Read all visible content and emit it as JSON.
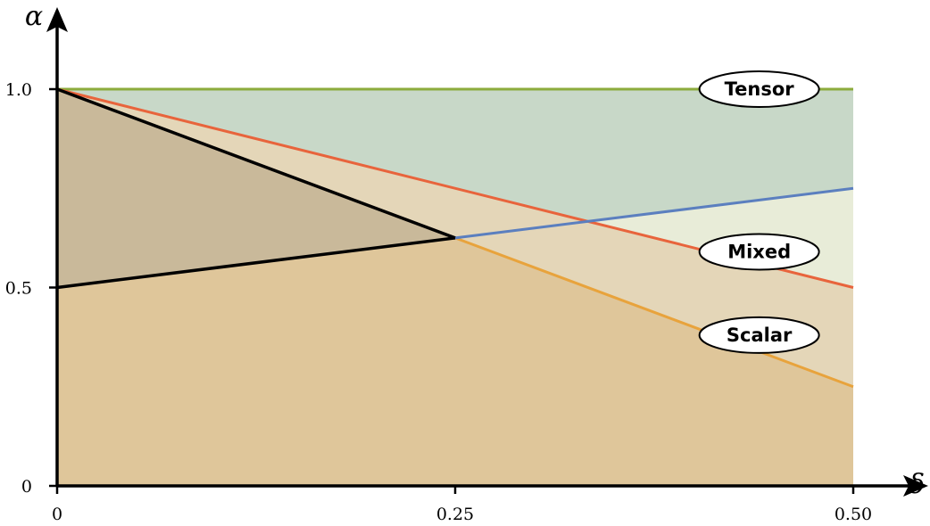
{
  "chart_data": {
    "type": "area",
    "title": "",
    "xlabel": "δ",
    "ylabel": "α",
    "xlim": [
      0,
      0.5
    ],
    "ylim": [
      0,
      1.0
    ],
    "x_ticks": [
      "0",
      "0.25",
      "0.50"
    ],
    "y_ticks": [
      "0",
      "0.5",
      "1.0"
    ],
    "series": [
      {
        "name": "Tensor",
        "color": "#8cab3c",
        "x": [
          0,
          0.5
        ],
        "y": [
          1.0,
          1.0
        ]
      },
      {
        "name": "Mixed",
        "color": "#e8643c",
        "x": [
          0,
          0.5
        ],
        "y": [
          1.0,
          0.5
        ]
      },
      {
        "name": "Scalar",
        "color": "#e8a33c",
        "x": [
          0,
          0.25,
          0.5
        ],
        "y": [
          1.0,
          0.625,
          0.25
        ]
      },
      {
        "color": "#5b7fbf",
        "x": [
          0.25,
          0.5
        ],
        "y": [
          0.625,
          0.75
        ]
      },
      {
        "color": "#000000",
        "x": [
          0,
          0.25
        ],
        "y": [
          1.0,
          0.625
        ]
      },
      {
        "color": "#000000",
        "x": [
          0,
          0.25
        ],
        "y": [
          0.5,
          0.625
        ]
      }
    ],
    "regions": [
      {
        "color": "#c8d8c8",
        "polygon": [
          [
            0,
            1.0
          ],
          [
            0.5,
            1.0
          ],
          [
            0.5,
            0.5
          ],
          [
            0,
            1.0
          ]
        ]
      },
      {
        "color": "#e8ecd8",
        "polygon": [
          [
            0.25,
            0.625
          ],
          [
            0.5,
            0.75
          ],
          [
            0.5,
            0.5
          ],
          [
            0.333,
            0.667
          ]
        ]
      },
      {
        "color": "#e4d6b8",
        "polygon": [
          [
            0,
            1.0
          ],
          [
            0.5,
            0.5
          ],
          [
            0.5,
            0.25
          ],
          [
            0.25,
            0.625
          ]
        ]
      },
      {
        "color": "#dfc69a",
        "polygon": [
          [
            0,
            0
          ],
          [
            0,
            0.5
          ],
          [
            0.25,
            0.625
          ],
          [
            0.5,
            0.25
          ],
          [
            0.5,
            0
          ]
        ]
      },
      {
        "color": "#c9b99a",
        "polygon": [
          [
            0,
            1.0
          ],
          [
            0.25,
            0.625
          ],
          [
            0,
            0.5
          ]
        ]
      }
    ],
    "annotations": [
      {
        "text": "Tensor",
        "x": 0.409,
        "y": 1.0
      },
      {
        "text": "Mixed",
        "x": 0.409,
        "y": 0.59
      },
      {
        "text": "Scalar",
        "x": 0.409,
        "y": 0.38
      }
    ],
    "grid": false,
    "legend": "none"
  }
}
